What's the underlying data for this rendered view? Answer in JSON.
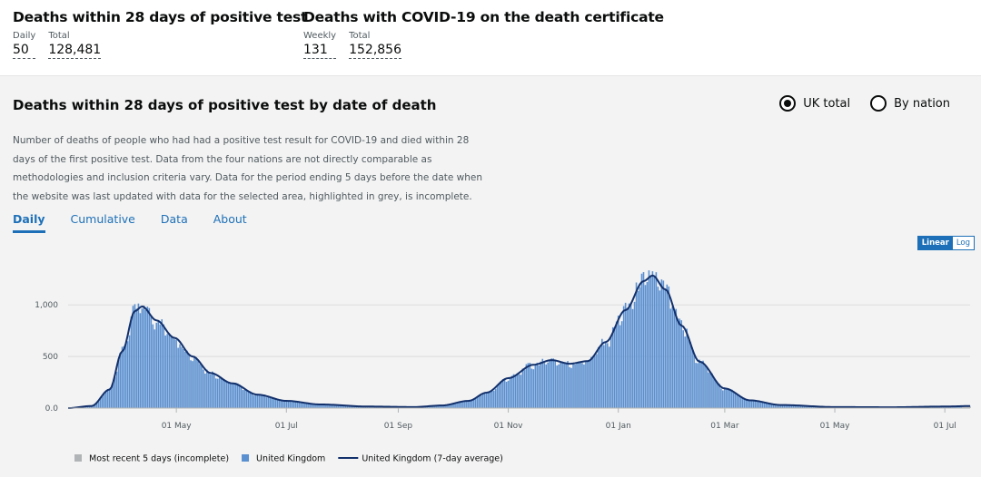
{
  "headline": {
    "deaths28": {
      "title": "Deaths within 28 days of positive test",
      "daily_label": "Daily",
      "daily_value": "50",
      "total_label": "Total",
      "total_value": "128,481"
    },
    "certificate": {
      "title": "Deaths with COVID-19 on the death certificate",
      "weekly_label": "Weekly",
      "weekly_value": "131",
      "total_label": "Total",
      "total_value": "152,856"
    }
  },
  "card": {
    "title": "Deaths within 28 days of positive test by date of death",
    "radios": [
      {
        "label": "UK total",
        "selected": true
      },
      {
        "label": "By nation",
        "selected": false
      }
    ],
    "description": "Number of deaths of people who had had a positive test result for COVID-19 and died within 28 days of the first positive test. Data from the four nations are not directly comparable as methodologies and inclusion criteria vary. Data for the period ending 5 days before the date when the website was last updated with data for the selected area, highlighted in grey, is incomplete.",
    "tabs": [
      {
        "label": "Daily",
        "active": true
      },
      {
        "label": "Cumulative",
        "active": false
      },
      {
        "label": "Data",
        "active": false
      },
      {
        "label": "About",
        "active": false
      }
    ],
    "scale": {
      "linear": "Linear",
      "log": "Log",
      "active": "linear"
    }
  },
  "chart_data": {
    "type": "bar",
    "title": "",
    "xlabel": "",
    "ylabel": "",
    "ylim": [
      0,
      1450
    ],
    "yticks": [
      {
        "v": 0,
        "label": "0.0"
      },
      {
        "v": 500,
        "label": "500"
      },
      {
        "v": 1000,
        "label": "1,000"
      }
    ],
    "x_start": "2020-03-02",
    "x_end": "2021-07-15",
    "xticks": [
      {
        "date": "2020-05-01",
        "label": "01 May"
      },
      {
        "date": "2020-07-01",
        "label": "01 Jul"
      },
      {
        "date": "2020-09-01",
        "label": "01 Sep"
      },
      {
        "date": "2020-11-01",
        "label": "01 Nov"
      },
      {
        "date": "2021-01-01",
        "label": "01 Jan"
      },
      {
        "date": "2021-03-01",
        "label": "01 Mar"
      },
      {
        "date": "2021-05-01",
        "label": "01 May"
      },
      {
        "date": "2021-07-01",
        "label": "01 Jul"
      }
    ],
    "avg_keypoints": [
      [
        "2020-03-02",
        0
      ],
      [
        "2020-03-15",
        20
      ],
      [
        "2020-03-25",
        180
      ],
      [
        "2020-04-01",
        550
      ],
      [
        "2020-04-08",
        940
      ],
      [
        "2020-04-12",
        985
      ],
      [
        "2020-04-20",
        850
      ],
      [
        "2020-04-30",
        680
      ],
      [
        "2020-05-10",
        500
      ],
      [
        "2020-05-20",
        340
      ],
      [
        "2020-06-01",
        240
      ],
      [
        "2020-06-15",
        130
      ],
      [
        "2020-07-01",
        70
      ],
      [
        "2020-07-20",
        35
      ],
      [
        "2020-08-15",
        15
      ],
      [
        "2020-09-10",
        10
      ],
      [
        "2020-09-25",
        25
      ],
      [
        "2020-10-10",
        70
      ],
      [
        "2020-10-20",
        150
      ],
      [
        "2020-11-01",
        290
      ],
      [
        "2020-11-15",
        420
      ],
      [
        "2020-11-25",
        465
      ],
      [
        "2020-12-05",
        430
      ],
      [
        "2020-12-15",
        455
      ],
      [
        "2020-12-25",
        640
      ],
      [
        "2021-01-05",
        950
      ],
      [
        "2021-01-15",
        1230
      ],
      [
        "2021-01-20",
        1285
      ],
      [
        "2021-01-27",
        1150
      ],
      [
        "2021-02-05",
        800
      ],
      [
        "2021-02-15",
        450
      ],
      [
        "2021-03-01",
        190
      ],
      [
        "2021-03-15",
        75
      ],
      [
        "2021-04-01",
        30
      ],
      [
        "2021-05-01",
        10
      ],
      [
        "2021-06-01",
        8
      ],
      [
        "2021-07-01",
        15
      ],
      [
        "2021-07-15",
        20
      ]
    ],
    "incomplete_days": 5,
    "legend": [
      {
        "name": "Most recent 5 days (incomplete)",
        "color": "#b1b4b6",
        "kind": "square"
      },
      {
        "name": "United Kingdom",
        "color": "#5a8fd0",
        "kind": "square"
      },
      {
        "name": "United Kingdom (7-day average)",
        "color": "#12306b",
        "kind": "line"
      }
    ]
  },
  "colors": {
    "bar": "#5a8fd0",
    "avg": "#12306b",
    "incomplete": "#b1b4b6",
    "link": "#1d70b8"
  }
}
